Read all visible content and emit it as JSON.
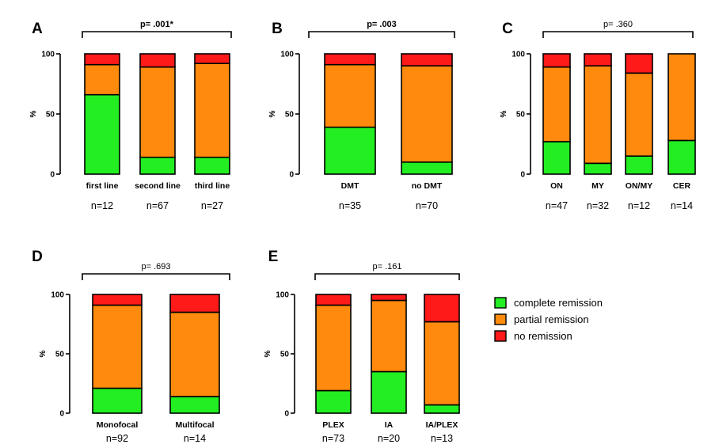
{
  "legend": {
    "items": [
      {
        "name": "complete remission",
        "color": "#22ee22"
      },
      {
        "name": "partial remission",
        "color": "#ff8a0d"
      },
      {
        "name": "no remission",
        "color": "#ff1a1a"
      }
    ]
  },
  "chart_data": [
    {
      "type": "bar",
      "stacked": true,
      "panel": "A",
      "p_value": "p= .001*",
      "ylabel": "%",
      "ylim": [
        0,
        100
      ],
      "yticks": [
        0,
        50,
        100
      ],
      "categories": [
        "first line",
        "second line",
        "third line"
      ],
      "n_labels": [
        "n=12",
        "n=67",
        "n=27"
      ],
      "series": [
        {
          "name": "complete remission",
          "values": [
            66,
            14,
            14
          ]
        },
        {
          "name": "partial remission",
          "values": [
            25,
            75,
            78
          ]
        },
        {
          "name": "no remission",
          "values": [
            9,
            11,
            8
          ]
        }
      ]
    },
    {
      "type": "bar",
      "stacked": true,
      "panel": "B",
      "p_value": "p= .003",
      "ylabel": "%",
      "ylim": [
        0,
        100
      ],
      "yticks": [
        0,
        50,
        100
      ],
      "categories": [
        "DMT",
        "no DMT"
      ],
      "n_labels": [
        "n=35",
        "n=70"
      ],
      "series": [
        {
          "name": "complete remission",
          "values": [
            39,
            10
          ]
        },
        {
          "name": "partial remission",
          "values": [
            52,
            80
          ]
        },
        {
          "name": "no remission",
          "values": [
            9,
            10
          ]
        }
      ]
    },
    {
      "type": "bar",
      "stacked": true,
      "panel": "C",
      "p_value": "p= .360",
      "ylabel": "%",
      "ylim": [
        0,
        100
      ],
      "yticks": [
        0,
        50,
        100
      ],
      "categories": [
        "ON",
        "MY",
        "ON/MY",
        "CER"
      ],
      "n_labels": [
        "n=47",
        "n=32",
        "n=12",
        "n=14"
      ],
      "series": [
        {
          "name": "complete remission",
          "values": [
            27,
            9,
            15,
            28
          ]
        },
        {
          "name": "partial remission",
          "values": [
            62,
            81,
            69,
            72
          ]
        },
        {
          "name": "no remission",
          "values": [
            11,
            10,
            16,
            0
          ]
        }
      ]
    },
    {
      "type": "bar",
      "stacked": true,
      "panel": "D",
      "p_value": "p= .693",
      "ylabel": "%",
      "ylim": [
        0,
        100
      ],
      "yticks": [
        0,
        50,
        100
      ],
      "categories": [
        "Monofocal",
        "Multifocal"
      ],
      "n_labels": [
        "n=92",
        "n=14"
      ],
      "series": [
        {
          "name": "complete remission",
          "values": [
            21,
            14
          ]
        },
        {
          "name": "partial remission",
          "values": [
            70,
            71
          ]
        },
        {
          "name": "no remission",
          "values": [
            9,
            15
          ]
        }
      ]
    },
    {
      "type": "bar",
      "stacked": true,
      "panel": "E",
      "p_value": "p= .161",
      "ylabel": "%",
      "ylim": [
        0,
        100
      ],
      "yticks": [
        0,
        50,
        100
      ],
      "categories": [
        "PLEX",
        "IA",
        "IA/PLEX"
      ],
      "n_labels": [
        "n=73",
        "n=20",
        "n=13"
      ],
      "series": [
        {
          "name": "complete remission",
          "values": [
            19,
            35,
            7
          ]
        },
        {
          "name": "partial remission",
          "values": [
            72,
            60,
            70
          ]
        },
        {
          "name": "no remission",
          "values": [
            9,
            5,
            23
          ]
        }
      ]
    }
  ]
}
